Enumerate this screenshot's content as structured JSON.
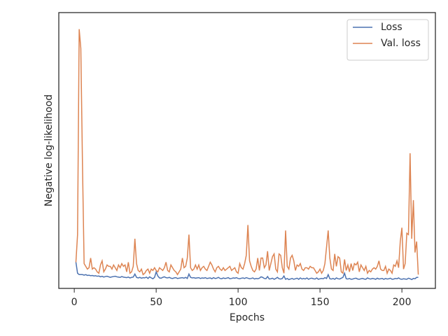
{
  "chart_data": {
    "type": "line",
    "xlabel": "Epochs",
    "ylabel": "Negative log-likelihood",
    "x": [
      1,
      2,
      3,
      4,
      5,
      6,
      7,
      8,
      9,
      10,
      11,
      12,
      13,
      14,
      15,
      16,
      17,
      18,
      19,
      20,
      21,
      22,
      23,
      24,
      25,
      26,
      27,
      28,
      29,
      30,
      31,
      32,
      33,
      34,
      35,
      36,
      37,
      38,
      39,
      40,
      41,
      42,
      43,
      44,
      45,
      46,
      47,
      48,
      49,
      50,
      51,
      52,
      53,
      54,
      55,
      56,
      57,
      58,
      59,
      60,
      61,
      62,
      63,
      64,
      65,
      66,
      67,
      68,
      69,
      70,
      71,
      72,
      73,
      74,
      75,
      76,
      77,
      78,
      79,
      80,
      81,
      82,
      83,
      84,
      85,
      86,
      87,
      88,
      89,
      90,
      91,
      92,
      93,
      94,
      95,
      96,
      97,
      98,
      99,
      100,
      101,
      102,
      103,
      104,
      105,
      106,
      107,
      108,
      109,
      110,
      111,
      112,
      113,
      114,
      115,
      116,
      117,
      118,
      119,
      120,
      121,
      122,
      123,
      124,
      125,
      126,
      127,
      128,
      129,
      130,
      131,
      132,
      133,
      134,
      135,
      136,
      137,
      138,
      139,
      140,
      141,
      142,
      143,
      144,
      145,
      146,
      147,
      148,
      149,
      150,
      151,
      152,
      153,
      154,
      155,
      156,
      157,
      158,
      159,
      160,
      161,
      162,
      163,
      164,
      165,
      166,
      167,
      168,
      169,
      170,
      171,
      172,
      173,
      174,
      175,
      176,
      177,
      178,
      179,
      180,
      181,
      182,
      183,
      184,
      185,
      186,
      187,
      188,
      189,
      190,
      191,
      192,
      193,
      194,
      195,
      196,
      197,
      198,
      199,
      200,
      201,
      202,
      203,
      204,
      205,
      206,
      207,
      208,
      209,
      210
    ],
    "series": [
      {
        "name": "Loss",
        "color": "#4c72b0",
        "values": [
          9.5,
          5.5,
          5,
          5,
          5,
          4.8,
          5,
          4.7,
          4.8,
          4.6,
          4.7,
          4.5,
          4.6,
          4.4,
          4.5,
          4.2,
          4.4,
          4.1,
          4.3,
          4.4,
          4.2,
          4,
          4.2,
          4.3,
          4.4,
          4.2,
          4.1,
          4,
          4.3,
          4.1,
          4,
          3.9,
          4.1,
          3.8,
          4,
          4.1,
          5.2,
          4,
          3.8,
          4,
          3.7,
          3.9,
          3.8,
          4.1,
          3.6,
          4.2,
          3.8,
          3.5,
          4,
          6,
          4.5,
          3.8,
          3.7,
          4,
          4.2,
          3.9,
          3.8,
          4,
          3.7,
          3.6,
          3.8,
          3.9,
          3.6,
          3.7,
          3.8,
          3.9,
          3.7,
          4,
          3.6,
          5.2,
          4,
          3.8,
          3.9,
          3.7,
          3.8,
          3.9,
          3.6,
          3.8,
          3.7,
          3.9,
          3.6,
          3.7,
          3.8,
          3.5,
          3.9,
          3.6,
          3.7,
          4,
          3.6,
          3.5,
          3.8,
          3.6,
          3.7,
          3.9,
          3.5,
          3.6,
          3.8,
          3.7,
          3.9,
          3.6,
          3.5,
          3.7,
          3.8,
          3.6,
          3.9,
          3.7,
          3.5,
          3.6,
          3.8,
          3.4,
          3.6,
          3.5,
          3.7,
          4.2,
          4,
          3.6,
          3.5,
          4.3,
          3.4,
          3.5,
          3.7,
          3.3,
          3.6,
          4,
          3.5,
          3.4,
          3.6,
          4.5,
          3.3,
          3.6,
          3.2,
          3.4,
          3.6,
          3.3,
          3.5,
          3.7,
          3.3,
          3.8,
          3.4,
          3.6,
          3.4,
          3.8,
          3.3,
          3.6,
          3.7,
          3.5,
          3.4,
          3.8,
          3.3,
          3.5,
          3.6,
          3.5,
          3.9,
          3.6,
          5,
          3.5,
          3.4,
          3.6,
          3.3,
          3.8,
          3.5,
          3.4,
          3.7,
          4,
          5.5,
          3.5,
          3.4,
          3.6,
          3.3,
          3.4,
          3.6,
          3.7,
          3.4,
          3.3,
          3.5,
          3.6,
          3.4,
          3.3,
          3.8,
          3.5,
          3.4,
          3.6,
          3.5,
          3.3,
          3.7,
          3.4,
          3.5,
          3.6,
          3.3,
          3.6,
          3.4,
          3.5,
          3.7,
          3.3,
          3.4,
          3.6,
          3.5,
          3.8,
          3.4,
          3.3,
          3.5,
          3.4,
          3.3,
          3.7,
          3.5,
          3.2,
          3.6,
          3.5,
          4,
          4
        ]
      },
      {
        "name": "Val. loss",
        "color": "#dd8452",
        "values": [
          9.5,
          19.5,
          94,
          87,
          45,
          9,
          8,
          7,
          7.5,
          11,
          7,
          7.5,
          7,
          6,
          5.5,
          8.5,
          10,
          6,
          7,
          8.5,
          8,
          8,
          7,
          8.5,
          7.5,
          6.5,
          8.5,
          7.5,
          9,
          8,
          8.5,
          6,
          9.5,
          5.5,
          6,
          8,
          18,
          9,
          6.5,
          6,
          7,
          5,
          5.5,
          6.5,
          7,
          5.5,
          7,
          6.5,
          7.5,
          6.5,
          6,
          7.5,
          7,
          6.5,
          7.5,
          9.5,
          6.5,
          6,
          8.5,
          7.5,
          6.5,
          6,
          5,
          6,
          7,
          11,
          7.5,
          8,
          11,
          19.5,
          7.5,
          6.5,
          7,
          8.5,
          7,
          8.5,
          6.5,
          7.5,
          8,
          7,
          6.5,
          8,
          9.5,
          8.5,
          7,
          6,
          7.5,
          8,
          7,
          6.5,
          7.5,
          6.5,
          7,
          7.5,
          8,
          6.5,
          7,
          7.5,
          6,
          5.5,
          9,
          7.5,
          7,
          9,
          12,
          23,
          10,
          8,
          6.5,
          6,
          7,
          11,
          6.5,
          11,
          11,
          7.5,
          8.5,
          13.5,
          6.5,
          9,
          11.5,
          12.5,
          7,
          6,
          12.5,
          12,
          7.5,
          5.5,
          21,
          8,
          7,
          11,
          12,
          10,
          6.5,
          8.5,
          8,
          9,
          7,
          6.5,
          7.5,
          7.5,
          7,
          8,
          7.5,
          7.5,
          6.5,
          5.5,
          6,
          7,
          5.5,
          6.5,
          9,
          15,
          21,
          11,
          7,
          6.5,
          12.5,
          8,
          11.5,
          11,
          6,
          5.5,
          10.5,
          6.5,
          8.5,
          6,
          9,
          6.5,
          9,
          8.5,
          9.5,
          6,
          8.5,
          7.5,
          6.5,
          8,
          5.5,
          6.5,
          6,
          7,
          7.5,
          7,
          8,
          10,
          7,
          6.5,
          6.5,
          8,
          5.5,
          7,
          6.5,
          5.5,
          8.5,
          8,
          10,
          7.5,
          17,
          22,
          7,
          9,
          20,
          19.5,
          49,
          18,
          32,
          13,
          17,
          5
        ]
      }
    ],
    "xlim": [
      -9.45,
      220.45
    ],
    "ylim": [
      0,
      100
    ],
    "xticks": [
      0,
      50,
      100,
      150,
      200
    ],
    "legend": "upper right"
  }
}
